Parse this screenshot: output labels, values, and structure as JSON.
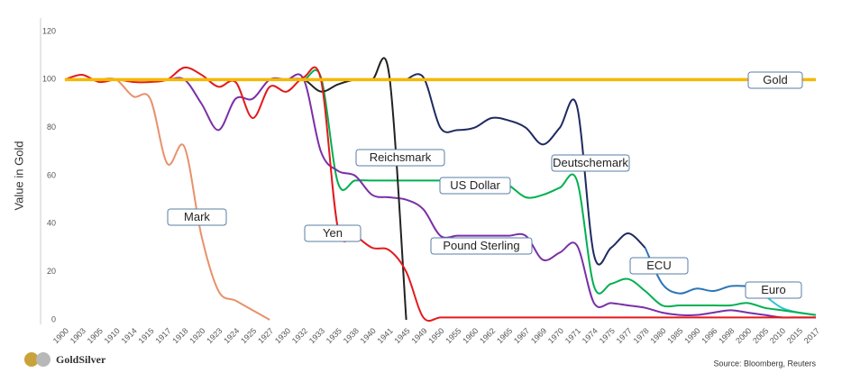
{
  "chart_data": {
    "type": "line",
    "y_label": "Value in Gold",
    "source": "Source: Bloomberg, Reuters",
    "logo": "GoldSilver",
    "categories": [
      "1900",
      "1903",
      "1905",
      "1910",
      "1914",
      "1915",
      "1917",
      "1918",
      "1920",
      "1923",
      "1924",
      "1925",
      "1927",
      "1930",
      "1932",
      "1933",
      "1935",
      "1938",
      "1940",
      "1941",
      "1945",
      "1949",
      "1950",
      "1955",
      "1960",
      "1962",
      "1965",
      "1967",
      "1969",
      "1970",
      "1971",
      "1974",
      "1975",
      "1977",
      "1978",
      "1980",
      "1985",
      "1990",
      "1996",
      "1998",
      "2000",
      "2005",
      "2010",
      "2015",
      "2017"
    ],
    "ylim": [
      0,
      120
    ],
    "yticks": [
      0,
      20,
      40,
      60,
      80,
      100,
      120
    ],
    "grid": false,
    "series": [
      {
        "name": "Mark",
        "color": "#e8916b",
        "values": [
          100,
          100,
          100,
          100,
          93,
          92,
          65,
          72,
          35,
          12,
          8,
          4,
          0,
          null,
          null,
          null,
          null,
          null,
          null,
          null,
          null,
          null,
          null,
          null,
          null,
          null,
          null,
          null,
          null,
          null,
          null,
          null,
          null,
          null,
          null,
          null,
          null,
          null,
          null,
          null,
          null,
          null,
          null,
          null,
          null
        ]
      },
      {
        "name": "Deutschemark",
        "color": "#1f2a60",
        "values": [
          null,
          null,
          null,
          null,
          null,
          null,
          null,
          null,
          null,
          null,
          null,
          null,
          null,
          null,
          null,
          null,
          null,
          null,
          null,
          null,
          100,
          101,
          80,
          79,
          80,
          84,
          83,
          80,
          73,
          80,
          89,
          27,
          30,
          36,
          30,
          null,
          null,
          null,
          null,
          null,
          null,
          null,
          null,
          null,
          null
        ]
      },
      {
        "name": "ECU",
        "color": "#2e75b6",
        "values": [
          null,
          null,
          null,
          null,
          null,
          null,
          null,
          null,
          null,
          null,
          null,
          null,
          null,
          null,
          null,
          null,
          null,
          null,
          null,
          null,
          null,
          null,
          null,
          null,
          null,
          null,
          null,
          null,
          null,
          null,
          null,
          null,
          null,
          null,
          30,
          15,
          11,
          13,
          12,
          14,
          14,
          null,
          null,
          null,
          null
        ]
      },
      {
        "name": "Euro",
        "color": "#2ec4d6",
        "values": [
          null,
          null,
          null,
          null,
          null,
          null,
          null,
          null,
          null,
          null,
          null,
          null,
          null,
          null,
          null,
          null,
          null,
          null,
          null,
          null,
          null,
          null,
          null,
          null,
          null,
          null,
          null,
          null,
          null,
          null,
          null,
          null,
          null,
          null,
          null,
          null,
          null,
          null,
          null,
          null,
          14,
          10,
          5,
          3,
          2
        ]
      },
      {
        "name": "US Dollar",
        "color": "#00b050",
        "values": [
          100,
          100,
          100,
          100,
          100,
          100,
          100,
          100,
          100,
          100,
          100,
          100,
          100,
          100,
          100,
          101,
          57,
          58,
          58,
          58,
          58,
          58,
          58,
          58,
          58,
          58,
          56,
          51,
          52,
          55,
          58,
          14,
          15,
          17,
          12,
          6,
          6,
          6,
          6,
          6,
          7,
          5,
          4,
          3,
          2
        ]
      },
      {
        "name": "Pound Sterling",
        "color": "#7b2fa8",
        "values": [
          100,
          100,
          100,
          100,
          100,
          100,
          100,
          100,
          90,
          79,
          92,
          92,
          100,
          100,
          100,
          70,
          62,
          60,
          52,
          51,
          50,
          46,
          35,
          35,
          35,
          35,
          35,
          35,
          25,
          28,
          31,
          7,
          7,
          6,
          5,
          3,
          2,
          2,
          3,
          4,
          3,
          2,
          1,
          1,
          1
        ]
      },
      {
        "name": "Reichsmark",
        "color": "#222222",
        "values": [
          null,
          null,
          null,
          null,
          null,
          null,
          null,
          null,
          null,
          null,
          null,
          null,
          null,
          100,
          100,
          95,
          98,
          100,
          100,
          102,
          0,
          null,
          null,
          null,
          null,
          null,
          null,
          null,
          null,
          null,
          null,
          null,
          null,
          null,
          null,
          null,
          null,
          null,
          null,
          null,
          null,
          null,
          null,
          null,
          null
        ]
      },
      {
        "name": "Yen",
        "color": "#e31a1c",
        "values": [
          100,
          102,
          99,
          100,
          99,
          99,
          100,
          105,
          102,
          97,
          99,
          84,
          97,
          95,
          101,
          100,
          38,
          35,
          30,
          29,
          20,
          1,
          1,
          1,
          1,
          1,
          1,
          1,
          1,
          1,
          1,
          1,
          1,
          1,
          1,
          1,
          1,
          1,
          1,
          1,
          1,
          1,
          1,
          1,
          1
        ]
      },
      {
        "name": "Gold",
        "color": "#f5b800",
        "values": [
          100,
          100,
          100,
          100,
          100,
          100,
          100,
          100,
          100,
          100,
          100,
          100,
          100,
          100,
          100,
          100,
          100,
          100,
          100,
          100,
          100,
          100,
          100,
          100,
          100,
          100,
          100,
          100,
          100,
          100,
          100,
          100,
          100,
          100,
          100,
          100,
          100,
          100,
          100,
          100,
          100,
          100,
          100,
          100,
          100
        ]
      }
    ]
  }
}
